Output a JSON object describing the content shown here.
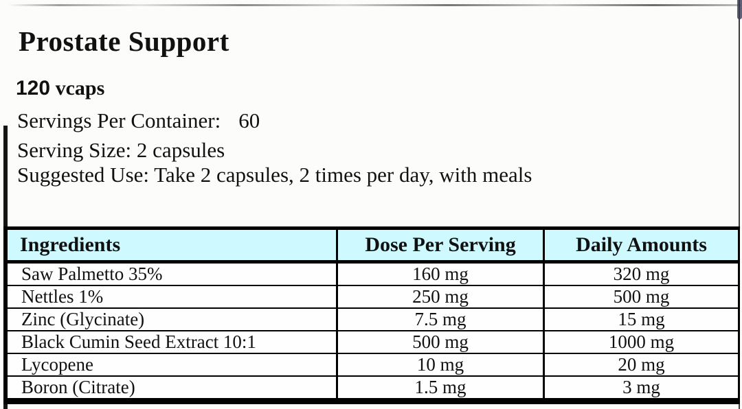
{
  "product": {
    "title": "Prostate Support",
    "size_count": "120",
    "size_unit": "vcaps",
    "servings_label": "Servings Per Container:",
    "servings_value": "60",
    "serving_size": "Serving Size: 2 capsules",
    "suggested_use": "Suggested Use: Take 2 capsules, 2 times per day, with meals"
  },
  "table": {
    "headers": [
      "Ingredients",
      "Dose Per Serving",
      "Daily Amounts"
    ],
    "rows": [
      {
        "ingredient": "Saw Palmetto 35%",
        "dose": "160 mg",
        "daily": "320 mg"
      },
      {
        "ingredient": "Nettles 1%",
        "dose": "250 mg",
        "daily": "500 mg"
      },
      {
        "ingredient": "Zinc (Glycinate)",
        "dose": "7.5 mg",
        "daily": "15 mg"
      },
      {
        "ingredient": "Black Cumin Seed Extract 10:1",
        "dose": "500 mg",
        "daily": "1000 mg"
      },
      {
        "ingredient": "Lycopene",
        "dose": "10 mg",
        "daily": "20 mg"
      },
      {
        "ingredient": "Boron (Citrate)",
        "dose": "1.5 mg",
        "daily": "3 mg"
      }
    ]
  },
  "colors": {
    "header_row_bg": "#cefaff",
    "table_border": "#000000",
    "page_bg": "#fcfcfb"
  }
}
